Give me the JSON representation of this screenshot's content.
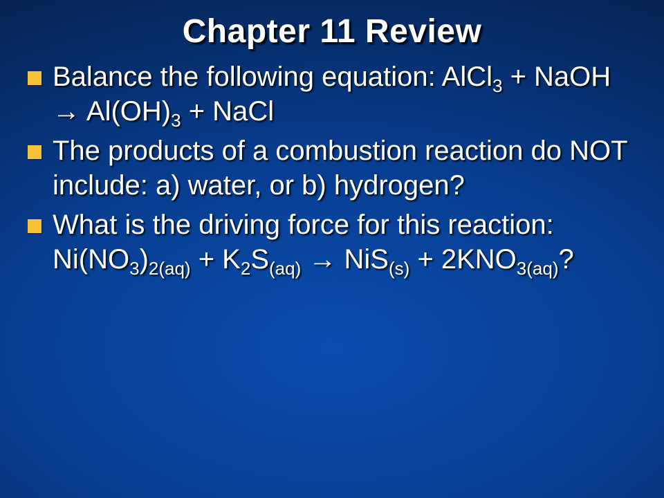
{
  "slide": {
    "title": "Chapter 11 Review",
    "bullets": [
      {
        "pre": "Balance the following equation: AlCl",
        "sub1": "3",
        "mid1": " + NaOH → Al(OH)",
        "sub2": "3",
        "post": " + NaCl"
      },
      {
        "text": "The products of a combustion reaction do NOT include: a) water, or b) hydrogen?"
      },
      {
        "line1": "What is the driving force for this reaction:",
        "eq_p1": "Ni(NO",
        "eq_s1": "3",
        "eq_p2": ")",
        "eq_s2": "2(aq)",
        "eq_p3": " + K",
        "eq_s3": "2",
        "eq_p4": "S",
        "eq_s4": "(aq)",
        "eq_p5": " → NiS",
        "eq_s5": "(s)",
        "eq_p6": " + 2KNO",
        "eq_s6": "3(aq)",
        "eq_p7": "?"
      }
    ],
    "style": {
      "title_font_size": 48,
      "body_font_size": 40,
      "bullet_color": "#f6c338",
      "text_color": "#ffffff",
      "background_gradient": [
        "#0a4db0",
        "#083d8f",
        "#06285f",
        "#041328"
      ]
    }
  }
}
